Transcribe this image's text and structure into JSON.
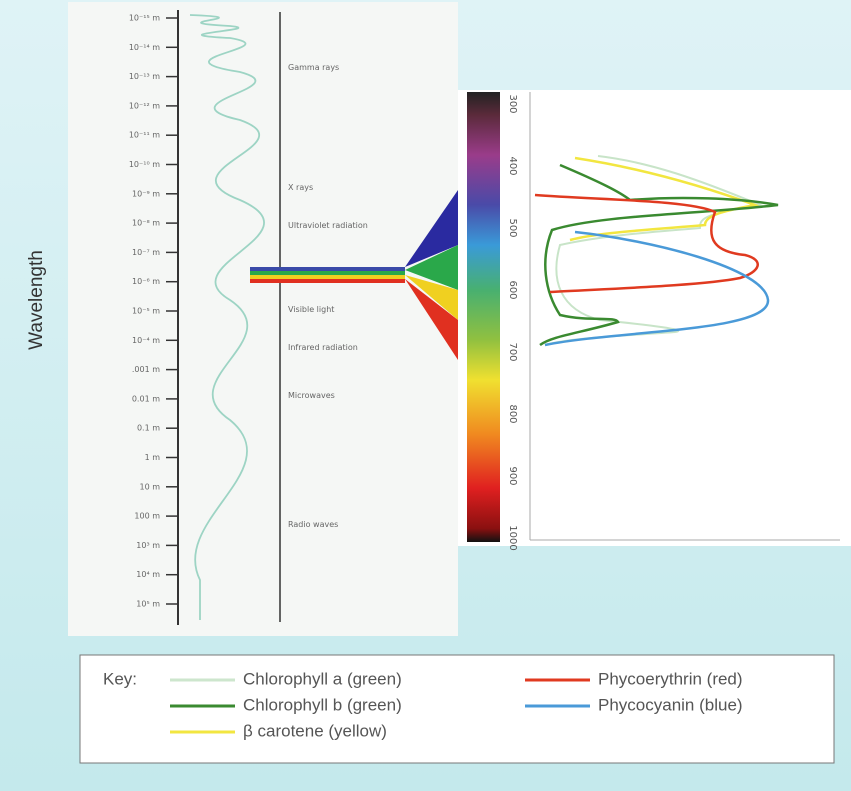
{
  "side_label": "Wavelength",
  "scale_labels": [
    "10⁻¹⁵ m",
    "10⁻¹⁴ m",
    "10⁻¹³ m",
    "10⁻¹² m",
    "10⁻¹¹ m",
    "10⁻¹⁰ m",
    "10⁻⁹ m",
    "10⁻⁸ m",
    "10⁻⁷ m",
    "10⁻⁶ m",
    "10⁻⁵ m",
    "10⁻⁴ m",
    ".001 m",
    "0.01 m",
    "0.1 m",
    "1 m",
    "10 m",
    "100 m",
    "10³ m",
    "10⁴ m",
    "10⁵ m"
  ],
  "regions": [
    "Gamma rays",
    "X rays",
    "Ultraviolet radiation",
    "Visible light",
    "Infrared radiation",
    "Microwaves",
    "Radio waves"
  ],
  "spectrum_ticks": [
    "300",
    "400",
    "500",
    "600",
    "700",
    "800",
    "900",
    "1000"
  ],
  "key": {
    "title": "Key:",
    "items": [
      "Chlorophyll a (green)",
      "Chlorophyll b (green)",
      "β carotene (yellow)",
      "Phycoerythrin (red)",
      "Phycocyanin (blue)"
    ]
  }
}
